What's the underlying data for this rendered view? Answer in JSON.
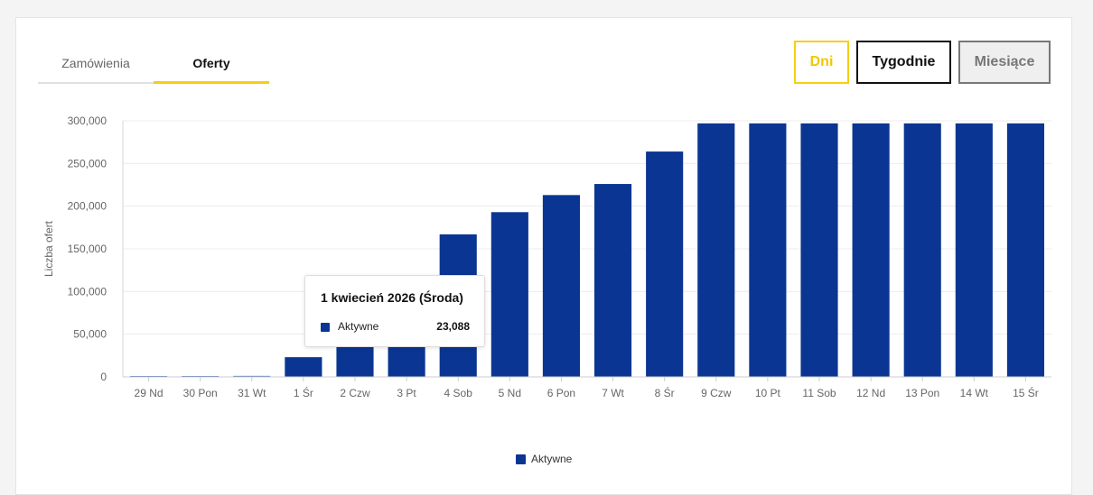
{
  "tabs": [
    {
      "label": "Zamówienia",
      "active": false
    },
    {
      "label": "Oferty",
      "active": true
    }
  ],
  "period_buttons": {
    "days": "Dni",
    "weeks": "Tygodnie",
    "months": "Miesiące"
  },
  "colors": {
    "bar": "#0a3593",
    "accent": "#f5cf14"
  },
  "chart_data": {
    "type": "bar",
    "ylabel": "Liczba ofert",
    "ylim": [
      0,
      300000
    ],
    "yticks": [
      "0",
      "50,000",
      "100,000",
      "150,000",
      "200,000",
      "250,000",
      "300,000"
    ],
    "ytick_values": [
      0,
      50000,
      100000,
      150000,
      200000,
      250000,
      300000
    ],
    "categories": [
      "29 Nd",
      "30 Pon",
      "31 Wt",
      "1 Śr",
      "2 Czw",
      "3 Pt",
      "4 Sob",
      "5 Nd",
      "6 Pon",
      "7 Wt",
      "8 Śr",
      "9 Czw",
      "10 Pt",
      "11 Sob",
      "12 Nd",
      "13 Pon",
      "14 Wt",
      "15 Śr"
    ],
    "series": [
      {
        "name": "Aktywne",
        "values": [
          500,
          800,
          1200,
          23088,
          38000,
          45000,
          167000,
          193000,
          213000,
          226000,
          264000,
          297000,
          297000,
          297000,
          297000,
          297000,
          297000,
          297000
        ]
      }
    ],
    "grid": true,
    "legend": "bottom-center",
    "highlight_index": 3
  },
  "tooltip": {
    "title": "1 kwiecień 2026 (Środa)",
    "series_name": "Aktywne",
    "value": "23,088"
  },
  "legend": {
    "label": "Aktywne"
  }
}
